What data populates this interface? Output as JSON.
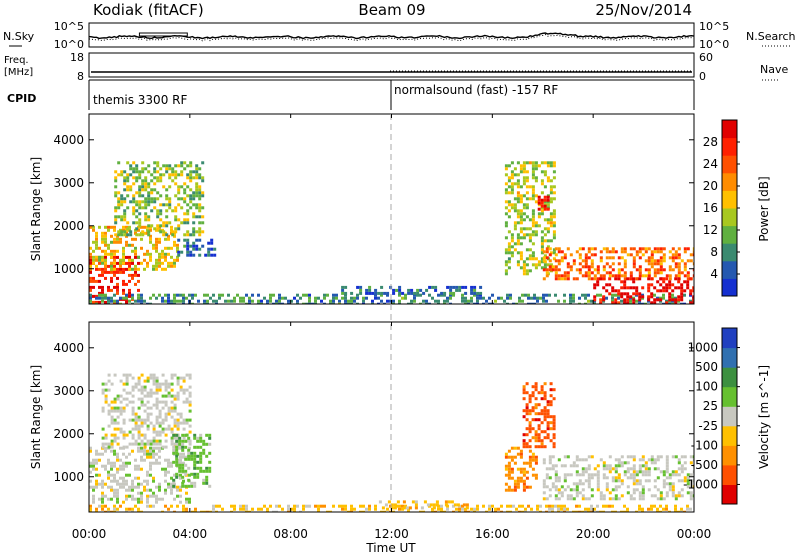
{
  "header": {
    "station": "Kodiak (fitACF)",
    "beam": "Beam 09",
    "date": "25/Nov/2014"
  },
  "noise_panel": {
    "left_label": "N.Sky",
    "left_ticks": [
      "10^5",
      "10^0"
    ],
    "right_ticks": [
      "10^5",
      "10^0"
    ],
    "right_label": "N.Search"
  },
  "freq_panel": {
    "left_label_line1": "Freq.",
    "left_label_line2": "[MHz]",
    "left_ticks": [
      "18",
      "8"
    ],
    "right_ticks": [
      "60",
      "0"
    ],
    "right_label": "Nave"
  },
  "cpid_panel": {
    "label": "CPID",
    "segments": [
      {
        "text": "themis 3300 RF",
        "start_hour": 0
      },
      {
        "text": "normalsound (fast) -157 RF",
        "start_hour": 12
      }
    ]
  },
  "chart_data": [
    {
      "type": "heatmap",
      "parameter": "Power",
      "ylabel": "Slant Range [km]",
      "ylim": [
        180,
        4600
      ],
      "yticks": [
        "1000",
        "2000",
        "3000",
        "4000"
      ],
      "xlim": [
        0,
        24
      ],
      "colorbar": {
        "label": "Power [dB]",
        "ticks": [
          "4",
          "8",
          "12",
          "16",
          "20",
          "24",
          "28"
        ],
        "colors": [
          "#1530d0",
          "#2458b0",
          "#3a8a70",
          "#60b040",
          "#a8c820",
          "#ffc000",
          "#ff8c00",
          "#ff5000",
          "#ff2000",
          "#e00000"
        ]
      },
      "regions": [
        {
          "t0": 0.0,
          "t1": 2.0,
          "r0": 180,
          "r1": 1300,
          "level": 0.9
        },
        {
          "t0": 0.0,
          "t1": 3.5,
          "r0": 1000,
          "r1": 2000,
          "level": 0.55
        },
        {
          "t0": 1.0,
          "t1": 4.5,
          "r0": 1800,
          "r1": 3500,
          "level": 0.4
        },
        {
          "t0": 3.5,
          "t1": 5.0,
          "r0": 1300,
          "r1": 1700,
          "level": 0.12
        },
        {
          "t0": 0.0,
          "t1": 24.0,
          "r0": 180,
          "r1": 420,
          "level": 0.22
        },
        {
          "t0": 10.0,
          "t1": 15.5,
          "r0": 400,
          "r1": 600,
          "level": 0.15
        },
        {
          "t0": 16.5,
          "t1": 18.5,
          "r0": 900,
          "r1": 3500,
          "level": 0.45
        },
        {
          "t0": 17.8,
          "t1": 18.2,
          "r0": 2400,
          "r1": 2700,
          "level": 0.95
        },
        {
          "t0": 18.0,
          "t1": 24.0,
          "r0": 800,
          "r1": 1500,
          "level": 0.75
        },
        {
          "t0": 20.0,
          "t1": 24.0,
          "r0": 180,
          "r1": 800,
          "level": 1.0
        }
      ]
    },
    {
      "type": "heatmap",
      "parameter": "Velocity",
      "ylabel": "Slant Range [km]",
      "ylim": [
        180,
        4600
      ],
      "yticks": [
        "1000",
        "2000",
        "3000",
        "4000"
      ],
      "xlim": [
        0,
        24
      ],
      "xticks": [
        "00:00",
        "04:00",
        "08:00",
        "12:00",
        "16:00",
        "20:00",
        "00:00"
      ],
      "xlabel": "Time UT",
      "colorbar": {
        "label": "Velocity [m s^-1]",
        "ticks": [
          "1000",
          "500",
          "100",
          "25",
          "-25",
          "-100",
          "-500",
          "-1000"
        ],
        "colors": [
          "#2040c0",
          "#3070b0",
          "#3c9040",
          "#66c030",
          "#c8c8c0",
          "#ffc000",
          "#ff9000",
          "#ff5000",
          "#e00000"
        ]
      },
      "regions": [
        {
          "t0": 0.0,
          "t1": 4.0,
          "r0": 400,
          "r1": 1700,
          "level": 4
        },
        {
          "t0": 0.5,
          "t1": 4.0,
          "r0": 1700,
          "r1": 3400,
          "level": 4
        },
        {
          "t0": 3.3,
          "t1": 4.8,
          "r0": 800,
          "r1": 2000,
          "level": 3
        },
        {
          "t0": 0.0,
          "t1": 24.0,
          "r0": 180,
          "r1": 350,
          "level": 5
        },
        {
          "t0": 11.5,
          "t1": 15.0,
          "r0": 250,
          "r1": 450,
          "level": 5
        },
        {
          "t0": 16.5,
          "t1": 17.8,
          "r0": 700,
          "r1": 1700,
          "level": 6
        },
        {
          "t0": 17.2,
          "t1": 18.5,
          "r0": 1700,
          "r1": 3200,
          "level": 7
        },
        {
          "t0": 18.0,
          "t1": 24.0,
          "r0": 500,
          "r1": 1500,
          "level": 4
        }
      ]
    }
  ],
  "time_axis": {
    "xlim": [
      0,
      24
    ],
    "xticks": [
      "00:00",
      "04:00",
      "08:00",
      "12:00",
      "16:00",
      "20:00",
      "00:00"
    ],
    "xlabel": "Time UT"
  }
}
